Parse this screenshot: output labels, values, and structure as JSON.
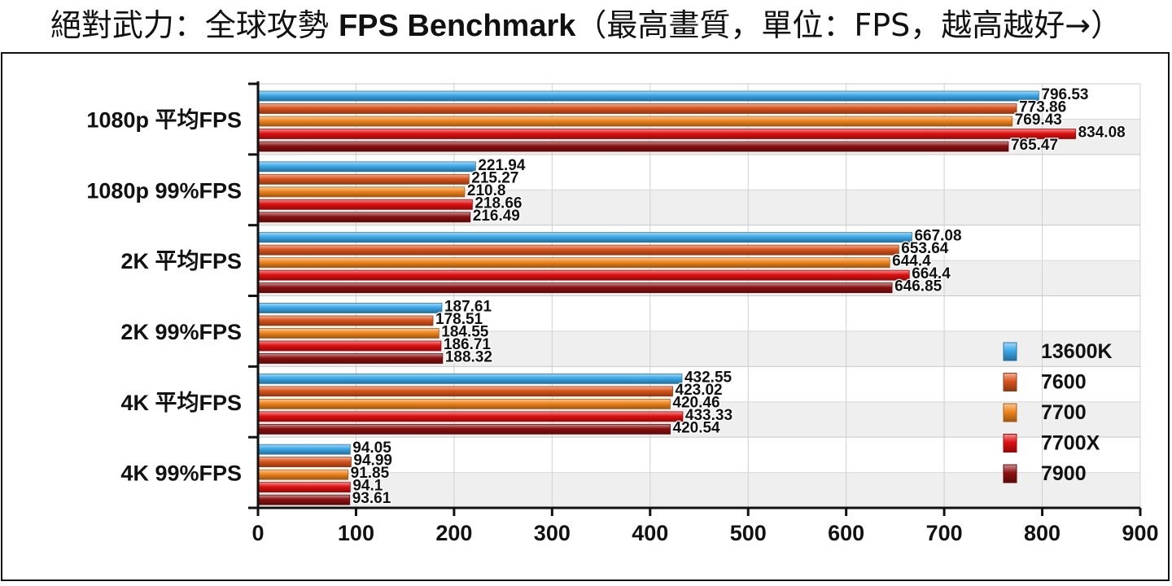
{
  "title": {
    "prefix": "絕對武力：全球攻勢 ",
    "bold": "FPS Benchmark",
    "suffix": "（最高畫質，單位：FPS，越高越好→）"
  },
  "chart_data": {
    "type": "bar",
    "orientation": "horizontal",
    "categories": [
      "1080p 平均FPS",
      "1080p 99%FPS",
      "2K 平均FPS",
      "2K 99%FPS",
      "4K 平均FPS",
      "4K 99%FPS"
    ],
    "series": [
      {
        "name": "13600K",
        "color": "#3aa8e8",
        "values": [
          796.53,
          221.94,
          667.08,
          187.61,
          432.55,
          94.05
        ]
      },
      {
        "name": "7600",
        "color": "#d9541c",
        "values": [
          773.86,
          215.27,
          653.64,
          178.51,
          423.02,
          94.99
        ]
      },
      {
        "name": "7700",
        "color": "#f0841c",
        "values": [
          769.43,
          210.8,
          644.4,
          184.55,
          420.46,
          91.85
        ]
      },
      {
        "name": "7700X",
        "color": "#e01010",
        "values": [
          834.08,
          218.66,
          664.4,
          186.71,
          433.33,
          94.1
        ]
      },
      {
        "name": "7900",
        "color": "#8a1010",
        "values": [
          765.47,
          216.49,
          646.85,
          188.32,
          420.54,
          93.61
        ]
      }
    ],
    "xlim": [
      0,
      900
    ],
    "xticks": [
      "0",
      "100",
      "200",
      "300",
      "400",
      "500",
      "600",
      "700",
      "800",
      "900"
    ],
    "grid": true,
    "legend_position": "bottom-right",
    "band_colors": [
      "#efefef",
      "#ffffff"
    ]
  }
}
